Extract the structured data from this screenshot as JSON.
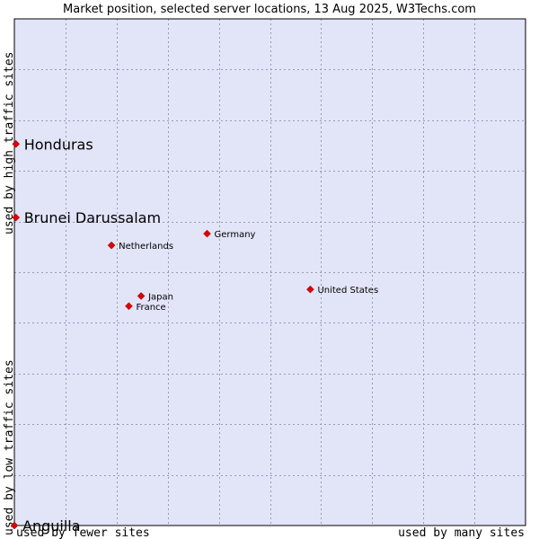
{
  "chart_data": {
    "type": "scatter",
    "title": "Market position, selected server locations, 13 Aug 2025, W3Techs.com",
    "xlabel_left": "used by fewer sites",
    "xlabel_right": "used by many sites",
    "ylabel_bottom": "used by low traffic sites",
    "ylabel_top": "used by high traffic sites",
    "xlim": [
      0,
      100
    ],
    "ylim": [
      0,
      100
    ],
    "grid": true,
    "colors": {
      "plot_background": "#e2e4f8",
      "marker": "#dd0000",
      "marker_outline": "#880000",
      "grid": "#9a9ab4",
      "frame": "#000000"
    },
    "points": [
      {
        "name": "Honduras",
        "x": 0.3,
        "y": 75.3,
        "emphasis": true
      },
      {
        "name": "Brunei Darussalam",
        "x": 0.3,
        "y": 60.8,
        "emphasis": true
      },
      {
        "name": "Germany",
        "x": 37.7,
        "y": 57.6,
        "emphasis": false
      },
      {
        "name": "Netherlands",
        "x": 19.0,
        "y": 55.3,
        "emphasis": false
      },
      {
        "name": "United States",
        "x": 57.9,
        "y": 46.6,
        "emphasis": false
      },
      {
        "name": "Japan",
        "x": 24.8,
        "y": 45.3,
        "emphasis": false
      },
      {
        "name": "France",
        "x": 22.4,
        "y": 43.3,
        "emphasis": false
      },
      {
        "name": "Anguilla",
        "x": 0.0,
        "y": 0.0,
        "emphasis": true
      }
    ]
  }
}
